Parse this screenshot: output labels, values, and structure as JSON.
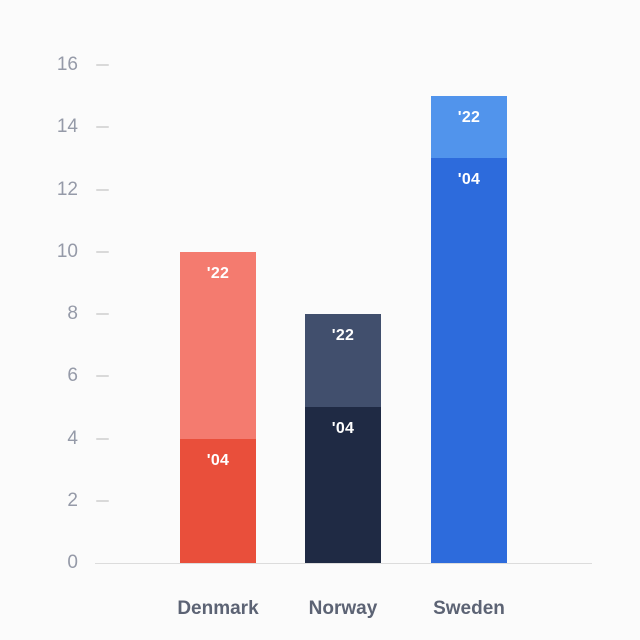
{
  "chart_data": {
    "type": "bar",
    "stacked": true,
    "title": "",
    "xlabel": "",
    "ylabel": "",
    "categories": [
      "Denmark",
      "Norway",
      "Sweden"
    ],
    "series": [
      {
        "name": "'04",
        "values": [
          4,
          5,
          13
        ]
      },
      {
        "name": "'22",
        "values": [
          6,
          3,
          2
        ]
      }
    ],
    "totals": [
      10,
      8,
      15
    ],
    "ylim": [
      0,
      16
    ],
    "yticks": [
      0,
      2,
      4,
      6,
      8,
      10,
      12,
      14,
      16
    ],
    "grid": false,
    "legend": "none",
    "colors": {
      "Denmark": {
        "s04": "#E94F3B",
        "s22": "#F47B6F"
      },
      "Norway": {
        "s04": "#1F2A44",
        "s22": "#414F6D"
      },
      "Sweden": {
        "s04": "#2D6BDC",
        "s22": "#5194EC"
      }
    },
    "label_color": "#FFFFFF",
    "axis_text_color": "#959AA8",
    "category_text_color": "#5C6374"
  }
}
